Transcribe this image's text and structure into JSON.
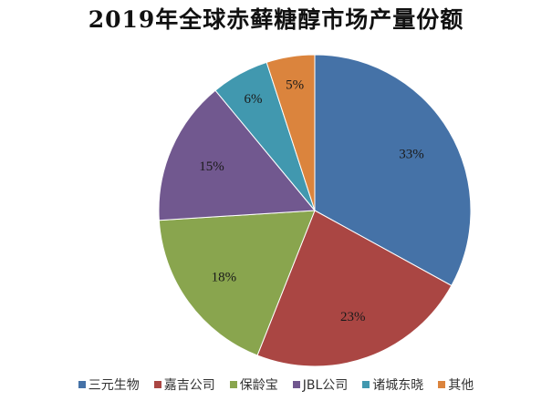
{
  "chart_data": {
    "type": "pie",
    "title": "2019年全球赤藓糖醇市场产量份额",
    "categories": [
      "三元生物",
      "嘉吉公司",
      "保龄宝",
      "JBL公司",
      "诸城东晓",
      "其他"
    ],
    "values": [
      33,
      23,
      18,
      15,
      6,
      5
    ],
    "labels": [
      "33%",
      "23%",
      "18%",
      "15%",
      "6%",
      "5%"
    ],
    "colors": [
      "#4572A7",
      "#AA4643",
      "#89A54E",
      "#71588F",
      "#4198AF",
      "#DB843D"
    ],
    "start_angle": "12 o'clock, clockwise",
    "legend_position": "bottom"
  },
  "title": "2019年全球赤藓糖醇市场产量份额",
  "legend": [
    {
      "label": "三元生物",
      "color": "#4572A7"
    },
    {
      "label": "嘉吉公司",
      "color": "#AA4643"
    },
    {
      "label": "保龄宝",
      "color": "#89A54E"
    },
    {
      "label": "JBL公司",
      "color": "#71588F"
    },
    {
      "label": "诸城东晓",
      "color": "#4198AF"
    },
    {
      "label": "其他",
      "color": "#DB843D"
    }
  ]
}
